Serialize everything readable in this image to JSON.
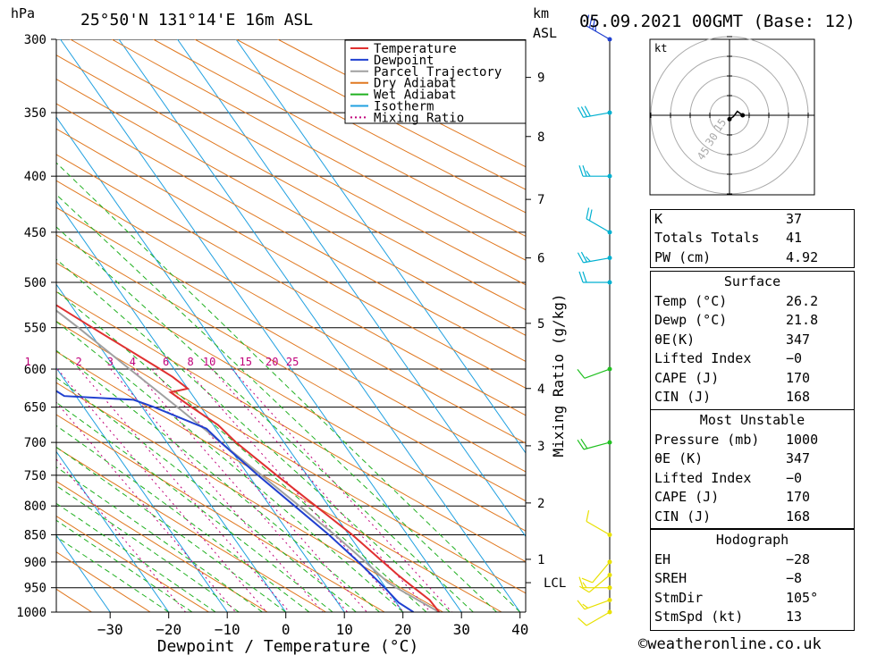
{
  "header": {
    "pressure_unit": "hPa",
    "location": "25°50'N  131°14'E  16m  ASL",
    "km_unit": "km",
    "asl_unit": "ASL",
    "datetime": "05.09.2021  00GMT  (Base: 12)"
  },
  "legend": [
    "Temperature",
    "Dewpoint",
    "Parcel Trajectory",
    "Dry Adiabat",
    "Wet Adiabat",
    "Isotherm",
    "Mixing Ratio"
  ],
  "colors": {
    "temperature": "#e03030",
    "dewpoint": "#2040d0",
    "parcel": "#a0a0a0",
    "dry_adiabat": "#e07820",
    "wet_adiabat": "#20b020",
    "isotherm": "#20a0e0",
    "mixing_ratio": "#c0007a",
    "wind_low": "#e8e000",
    "wind_mid": "#20c020",
    "wind_high": "#00b0d0",
    "wind_top": "#2040d0"
  },
  "chart_data": {
    "type": "line",
    "title": "",
    "xlabel": "Dewpoint / Temperature (°C)",
    "ylabel": "hPa",
    "mixing_ratio_axis_label": "Mixing Ratio (g/kg)",
    "x_ticks": [
      "−30",
      "−20",
      "−10",
      "0",
      "10",
      "20",
      "30",
      "40"
    ],
    "x_tick_values": [
      -30,
      -20,
      -10,
      0,
      10,
      20,
      30,
      40
    ],
    "pressure_levels": [
      300,
      350,
      400,
      450,
      500,
      550,
      600,
      650,
      700,
      750,
      800,
      850,
      900,
      950,
      1000
    ],
    "pressure_labels": [
      "300",
      "350",
      "400",
      "450",
      "500",
      "550",
      "600",
      "650",
      "700",
      "750",
      "800",
      "850",
      "900",
      "950",
      "1000"
    ],
    "km_ticks": [
      {
        "label": "9",
        "p": 325
      },
      {
        "label": "8",
        "p": 368
      },
      {
        "label": "7",
        "p": 420
      },
      {
        "label": "6",
        "p": 475
      },
      {
        "label": "5",
        "p": 545
      },
      {
        "label": "4",
        "p": 625
      },
      {
        "label": "3",
        "p": 705
      },
      {
        "label": "2",
        "p": 795
      },
      {
        "label": "1",
        "p": 895
      },
      {
        "label": "LCL",
        "p": 940
      }
    ],
    "mixing_ratio_labels": [
      {
        "label": "1",
        "t": -15.0
      },
      {
        "label": "2",
        "t": -6.3
      },
      {
        "label": "3",
        "t": -0.9
      },
      {
        "label": "4",
        "t": 2.9
      },
      {
        "label": "6",
        "t": 8.6
      },
      {
        "label": "8",
        "t": 12.8
      },
      {
        "label": "10",
        "t": 16.0
      },
      {
        "label": "15",
        "t": 22.2
      },
      {
        "label": "20",
        "t": 26.7
      },
      {
        "label": "25",
        "t": 30.2
      }
    ],
    "temperature_series": {
      "name": "Temperature",
      "p": [
        1000,
        975,
        950,
        925,
        900,
        850,
        800,
        750,
        700,
        675,
        650,
        630,
        625,
        610,
        600,
        550,
        500,
        450,
        400,
        370,
        350,
        340,
        325,
        310,
        300
      ],
      "t": [
        26.2,
        26.0,
        24.8,
        23.6,
        22.6,
        20.6,
        17.8,
        14.8,
        11.8,
        10.8,
        8.4,
        6.6,
        10.0,
        8.8,
        7.6,
        1.0,
        -6.0,
        -13.6,
        -22.4,
        -28.6,
        -32.6,
        -35.6,
        -38.4,
        -40.8,
        -42.0
      ]
    },
    "dewpoint_series": {
      "name": "Dewpoint",
      "p": [
        1000,
        980,
        950,
        900,
        850,
        800,
        750,
        700,
        680,
        650,
        640,
        635,
        600,
        550,
        500,
        450,
        400,
        375,
        370,
        350,
        300
      ],
      "t": [
        21.8,
        20.4,
        19.8,
        18.4,
        16.6,
        14.2,
        11.6,
        9.2,
        8.4,
        2.0,
        -0.6,
        -12.0,
        -16.0,
        -24.0,
        -32.0,
        -42.0,
        -52.0,
        -64.0,
        -66.0,
        -70.0,
        -80.0
      ]
    },
    "parcel_series": {
      "name": "Parcel Trajectory",
      "p": [
        1000,
        975,
        950,
        940,
        900,
        850,
        800,
        750,
        700,
        650,
        600,
        550,
        500,
        450,
        400,
        370
      ],
      "t": [
        26.2,
        24.0,
        21.8,
        21.0,
        19.6,
        17.6,
        15.0,
        12.2,
        9.2,
        6.0,
        2.4,
        -1.4,
        -6.0,
        -12.2,
        -20.2,
        -26.0
      ]
    },
    "winds": [
      {
        "p": 1000,
        "speed_kt": 10,
        "dir_deg": 240
      },
      {
        "p": 975,
        "speed_kt": 13,
        "dir_deg": 250
      },
      {
        "p": 950,
        "speed_kt": 15,
        "dir_deg": 270
      },
      {
        "p": 925,
        "speed_kt": 12,
        "dir_deg": 230
      },
      {
        "p": 900,
        "speed_kt": 10,
        "dir_deg": 220
      },
      {
        "p": 850,
        "speed_kt": 12,
        "dir_deg": 300
      },
      {
        "p": 700,
        "speed_kt": 20,
        "dir_deg": 255
      },
      {
        "p": 600,
        "speed_kt": 10,
        "dir_deg": 250
      },
      {
        "p": 500,
        "speed_kt": 20,
        "dir_deg": 270
      },
      {
        "p": 475,
        "speed_kt": 25,
        "dir_deg": 260
      },
      {
        "p": 450,
        "speed_kt": 20,
        "dir_deg": 300
      },
      {
        "p": 400,
        "speed_kt": 25,
        "dir_deg": 270
      },
      {
        "p": 350,
        "speed_kt": 30,
        "dir_deg": 260
      },
      {
        "p": 300,
        "speed_kt": 35,
        "dir_deg": 300
      }
    ],
    "hodograph": {
      "unit_label": "kt",
      "ring_labels": [
        "15",
        "30",
        "45"
      ],
      "points_kt": [
        [
          0,
          -3
        ],
        [
          3,
          -1
        ],
        [
          6,
          3
        ],
        [
          10,
          0
        ]
      ]
    }
  },
  "indices": {
    "general": [
      {
        "label": "K",
        "value": "37"
      },
      {
        "label": "Totals Totals",
        "value": "41"
      },
      {
        "label": "PW (cm)",
        "value": "4.92"
      }
    ],
    "surface": {
      "title": "Surface",
      "rows": [
        {
          "label": "Temp (°C)",
          "value": "26.2"
        },
        {
          "label": "Dewp (°C)",
          "value": "21.8"
        },
        {
          "label": "θE(K)",
          "value": "347"
        },
        {
          "label": "Lifted Index",
          "value": "−0"
        },
        {
          "label": "CAPE (J)",
          "value": "170"
        },
        {
          "label": "CIN (J)",
          "value": "168"
        }
      ]
    },
    "most_unstable": {
      "title": "Most Unstable",
      "rows": [
        {
          "label": "Pressure (mb)",
          "value": "1000"
        },
        {
          "label": "θE (K)",
          "value": "347"
        },
        {
          "label": "Lifted Index",
          "value": "−0"
        },
        {
          "label": "CAPE (J)",
          "value": "170"
        },
        {
          "label": "CIN (J)",
          "value": "168"
        }
      ]
    },
    "hodograph": {
      "title": "Hodograph",
      "rows": [
        {
          "label": "EH",
          "value": "−28"
        },
        {
          "label": "SREH",
          "value": "−8"
        },
        {
          "label": "StmDir",
          "value": "105°"
        },
        {
          "label": "StmSpd (kt)",
          "value": "13"
        }
      ]
    }
  },
  "footer": "©weatheronline.co.uk"
}
